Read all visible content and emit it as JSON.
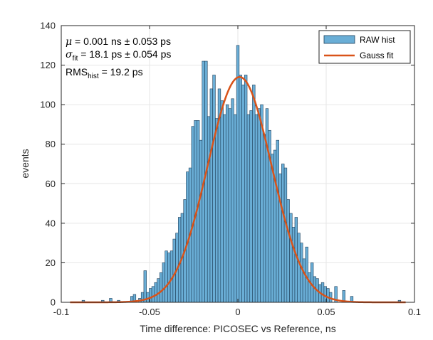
{
  "chart_data": {
    "type": "bar",
    "xlabel": "Time difference: PICOSEC vs Reference, ns",
    "ylabel": "events",
    "xlim": [
      -0.1,
      0.1
    ],
    "ylim": [
      0,
      140
    ],
    "xticks": [
      -0.1,
      -0.05,
      0,
      0.05,
      0.1
    ],
    "xtick_labels": [
      "-0.1",
      "-0.05",
      "0",
      "0.05",
      "0.1"
    ],
    "yticks": [
      0,
      20,
      40,
      60,
      80,
      100,
      120,
      140
    ],
    "grid": true,
    "legend_placement": "top-right",
    "annotations": {
      "mu": {
        "symbol": "μ",
        "text": " = 0.001 ns ± 0.053 ps"
      },
      "sigma": {
        "symbol": "σ",
        "sub": "fit",
        "text": " = 18.1 ps ± 0.054 ps"
      },
      "rms": {
        "symbol": "RMS",
        "sub": "hist",
        "text": " = 19.2 ps"
      }
    },
    "series": [
      {
        "name": "RAW hist",
        "kind": "histogram",
        "color": "#6AAED6",
        "edge_color": "#1F3F5A",
        "bin_centers": [
          -0.0875,
          -0.0765,
          -0.072,
          -0.0675,
          -0.06,
          -0.0585,
          -0.0555,
          -0.054,
          -0.0525,
          -0.051,
          -0.0495,
          -0.048,
          -0.0465,
          -0.045,
          -0.0435,
          -0.042,
          -0.0405,
          -0.039,
          -0.0375,
          -0.036,
          -0.0345,
          -0.033,
          -0.0315,
          -0.03,
          -0.0285,
          -0.027,
          -0.0255,
          -0.024,
          -0.0225,
          -0.021,
          -0.0195,
          -0.018,
          -0.0165,
          -0.015,
          -0.0135,
          -0.012,
          -0.0105,
          -0.009,
          -0.0075,
          -0.006,
          -0.0045,
          -0.003,
          -0.0015,
          0.0,
          0.0015,
          0.003,
          0.0045,
          0.006,
          0.0075,
          0.009,
          0.0105,
          0.012,
          0.0135,
          0.015,
          0.0165,
          0.018,
          0.0195,
          0.021,
          0.0225,
          0.024,
          0.0255,
          0.027,
          0.0285,
          0.03,
          0.0315,
          0.033,
          0.0345,
          0.036,
          0.0375,
          0.039,
          0.0405,
          0.042,
          0.0435,
          0.045,
          0.0465,
          0.048,
          0.0495,
          0.051,
          0.0525,
          0.0555,
          0.06,
          0.0645,
          0.0915
        ],
        "values": [
          1,
          1,
          2,
          1,
          3,
          4,
          2,
          5,
          16,
          5,
          7,
          8,
          10,
          12,
          15,
          20,
          26,
          25,
          26,
          32,
          35,
          43,
          45,
          52,
          66,
          68,
          89,
          92,
          92,
          82,
          122,
          122,
          94,
          108,
          115,
          93,
          108,
          102,
          95,
          100,
          98,
          103,
          95,
          130,
          115,
          110,
          115,
          95,
          97,
          110,
          95,
          98,
          100,
          85,
          98,
          87,
          75,
          77,
          82,
          65,
          70,
          68,
          52,
          45,
          38,
          43,
          35,
          30,
          22,
          28,
          15,
          20,
          13,
          12,
          9,
          10,
          8,
          7,
          5,
          8,
          6,
          3,
          1
        ]
      },
      {
        "name": "Gauss fit",
        "kind": "gaussian",
        "color": "#D95319",
        "mean": 0.001,
        "sigma": 0.0181,
        "amplitude": 114
      }
    ]
  }
}
